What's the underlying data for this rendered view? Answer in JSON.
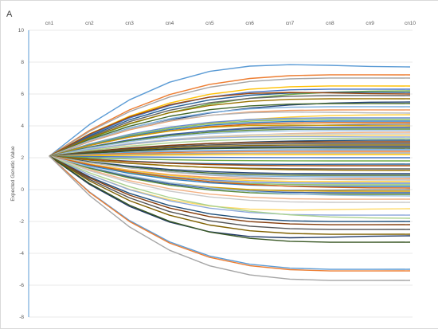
{
  "chart_data": {
    "type": "line",
    "panel_label": "A",
    "title": "",
    "xlabel": "",
    "ylabel": "Expected Genetic Value",
    "categories": [
      "cn1",
      "cn2",
      "cn3",
      "cn4",
      "cn5",
      "cn6",
      "cn7",
      "cn8",
      "cn9",
      "cn10"
    ],
    "x_axis_position": "top",
    "ylim": [
      -8,
      10
    ],
    "yticks": [
      10,
      8,
      6,
      4,
      2,
      0,
      -2,
      -4,
      -6,
      -8
    ],
    "grid": true,
    "legend": "none",
    "start_value": 2.1,
    "palette": [
      "#5b9bd5",
      "#ed7d31",
      "#a5a5a5",
      "#ffc000",
      "#4472c4",
      "#70ad47",
      "#255e91",
      "#9e480e",
      "#636363",
      "#997300",
      "#264478",
      "#43682b",
      "#7cafdd",
      "#f1975a",
      "#b7b7b7",
      "#ffcd33",
      "#698ed0",
      "#8cc168",
      "#327dc2",
      "#d26012",
      "#848484",
      "#cc9a00",
      "#335aa1",
      "#5a8a39",
      "#9dc3e6",
      "#f4b183",
      "#c9c9c9",
      "#ffd966",
      "#8faadc",
      "#a9d18e",
      "#1f4e79",
      "#843c0c",
      "#525252",
      "#7f6000",
      "#203864",
      "#385723"
    ],
    "series_end_values": [
      7.7,
      7.2,
      7.0,
      6.5,
      6.3,
      6.2,
      6.1,
      6.0,
      5.9,
      5.7,
      5.5,
      5.4,
      5.2,
      5.0,
      4.8,
      4.7,
      4.5,
      4.4,
      4.3,
      4.2,
      4.1,
      4.0,
      3.9,
      3.8,
      3.7,
      3.6,
      3.5,
      3.4,
      3.3,
      3.2,
      3.1,
      3.0,
      2.9,
      2.8,
      2.7,
      2.6,
      2.5,
      2.4,
      2.3,
      2.2,
      2.0,
      1.8,
      1.6,
      1.5,
      1.3,
      1.2,
      1.0,
      0.9,
      0.8,
      0.7,
      0.6,
      0.5,
      0.4,
      0.3,
      0.2,
      0.1,
      0.0,
      -0.1,
      -0.2,
      -0.3,
      -0.4,
      -0.6,
      -0.8,
      -1.2,
      -1.6,
      -1.8,
      -2.0,
      -2.2,
      -2.5,
      -2.8,
      -2.9,
      -3.3,
      -5.0,
      -5.1,
      -5.7
    ]
  }
}
